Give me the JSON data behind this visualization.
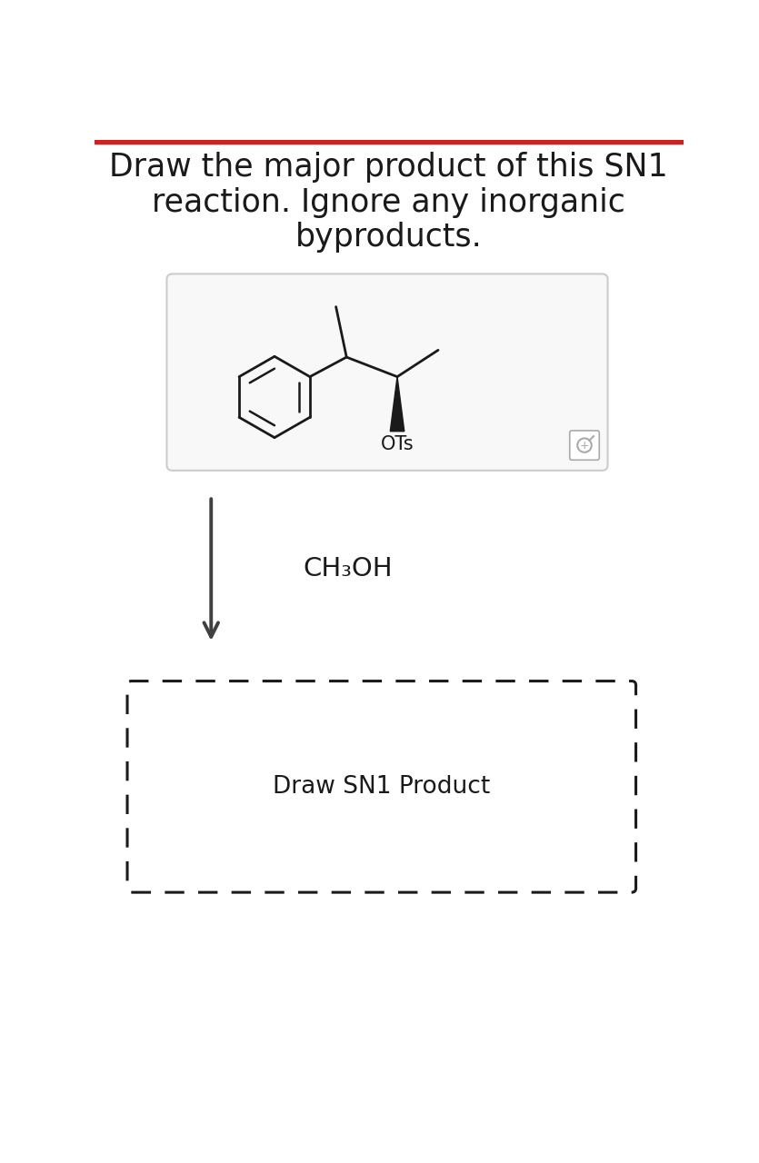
{
  "title_line1": "Draw the major product of this SN1",
  "title_line2": "reaction. Ignore any inorganic",
  "title_line3": "byproducts.",
  "reagent_text": "CH₃OH",
  "product_box_text": "Draw SN1 Product",
  "bg_color": "#ffffff",
  "text_color": "#1a1a1a",
  "arrow_color": "#404040",
  "bond_color": "#1a1a1a",
  "dashed_box_color": "#1a1a1a",
  "title_fontsize": 25,
  "reagent_fontsize": 21,
  "product_fontsize": 19,
  "top_bar_color": "#cc2222",
  "box_edge_color": "#cccccc",
  "box_bg": "#f8f8f8",
  "magnifier_color": "#aaaaaa"
}
